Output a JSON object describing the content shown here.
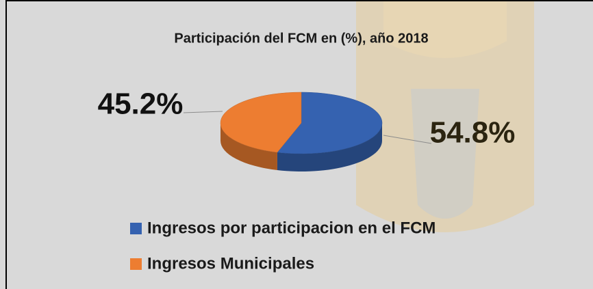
{
  "chart_data": {
    "type": "pie",
    "title": "Participación del FCM en (%), año 2018",
    "categories": [
      "Ingresos por participacion en el FCM",
      "Ingresos Municipales"
    ],
    "values": [
      54.8,
      45.2
    ],
    "value_labels": [
      "54.8%",
      "45.2%"
    ],
    "colors": [
      "#3562b0",
      "#ed7d31"
    ]
  }
}
